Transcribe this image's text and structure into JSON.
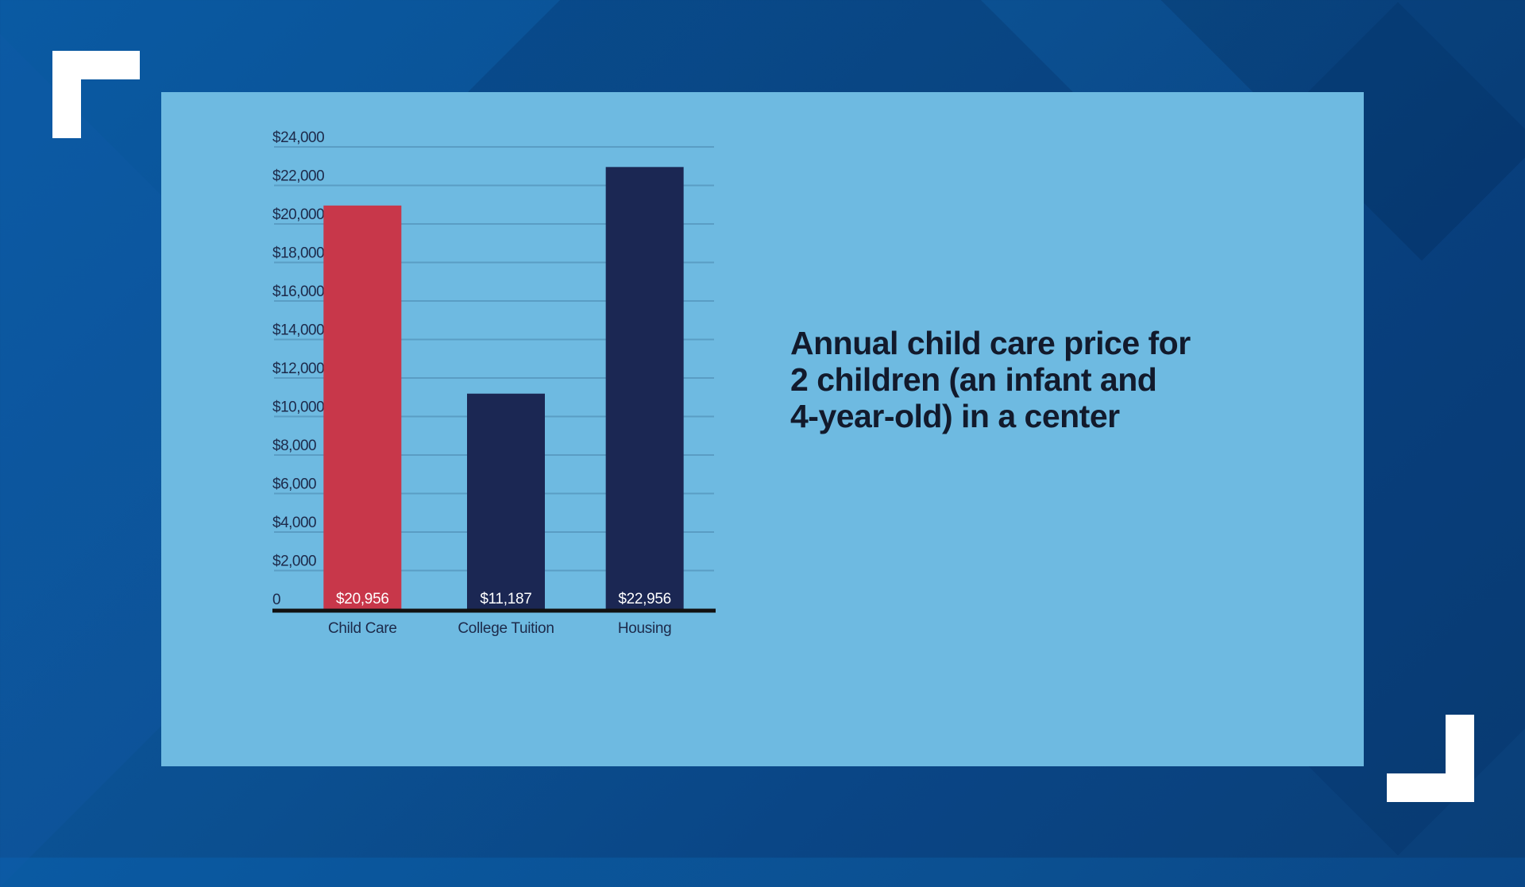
{
  "chart_data": {
    "type": "bar",
    "title_lines": [
      "Annual child care price for",
      "2 children (an infant and",
      "4-year-old) in a center"
    ],
    "categories": [
      "Child Care",
      "College Tuition",
      "Housing"
    ],
    "values": [
      20956,
      11187,
      22956
    ],
    "value_labels": [
      "$20,956",
      "$11,187",
      "$22,956"
    ],
    "bar_colors": [
      "#c8374a",
      "#1b2753",
      "#1b2753"
    ],
    "ylim": [
      0,
      24000
    ],
    "y_ticks": [
      0,
      2000,
      4000,
      6000,
      8000,
      10000,
      12000,
      14000,
      16000,
      18000,
      20000,
      22000,
      24000
    ],
    "y_tick_labels": [
      "0",
      "$2,000",
      "$4,000",
      "$6,000",
      "$8,000",
      "$10,000",
      "$12,000",
      "$14,000",
      "$16,000",
      "$18,000",
      "$20,000",
      "$22,000",
      "$24,000"
    ],
    "grid": true,
    "legend": "none"
  },
  "colors": {
    "background": "#0b4f90",
    "panel": "#6ebae1",
    "gridline": "#5a9dc4",
    "axis": "#111111",
    "title": "#121a2c"
  }
}
